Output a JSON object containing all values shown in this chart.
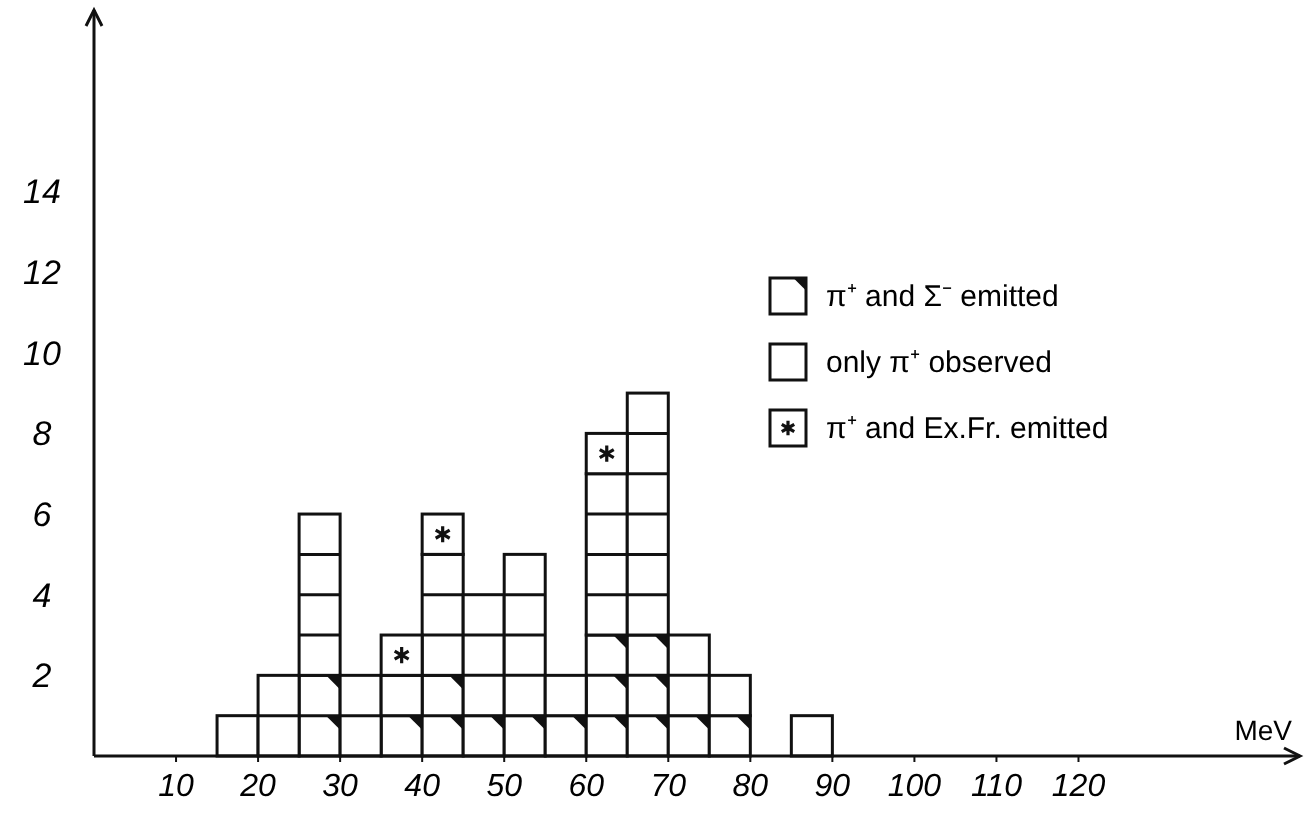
{
  "chart_data": {
    "type": "bar",
    "xlabel": "MeV",
    "x": [
      17.5,
      22.5,
      27.5,
      32.5,
      37.5,
      42.5,
      47.5,
      52.5,
      57.5,
      62.5,
      67.5,
      72.5,
      77.5,
      82.5,
      87.5
    ],
    "stacked": true,
    "series": [
      {
        "name": "π⁺ and Σ⁻ emitted",
        "color": "#ffffff",
        "values": [
          0,
          0,
          2,
          0,
          1,
          2,
          1,
          1,
          1,
          3,
          3,
          1,
          1,
          0,
          0
        ]
      },
      {
        "name": "only π⁺ observed",
        "color": "#ffffff",
        "values": [
          1,
          2,
          4,
          2,
          1,
          3,
          3,
          4,
          1,
          4,
          6,
          2,
          1,
          0,
          1
        ]
      },
      {
        "name": "π⁺ and Ex.Fr. emitted",
        "color": "#ffffff",
        "values": [
          0,
          0,
          0,
          0,
          1,
          1,
          0,
          0,
          0,
          1,
          0,
          0,
          0,
          0,
          0
        ]
      }
    ],
    "xlim": [
      0,
      147
    ],
    "xticks": [
      10,
      20,
      30,
      40,
      50,
      60,
      70,
      80,
      90,
      100,
      110,
      120
    ],
    "ylim": [
      0,
      18.5
    ],
    "yticks": [
      2,
      4,
      6,
      8,
      10,
      12,
      14
    ],
    "grid": false,
    "legend": "top right"
  }
}
